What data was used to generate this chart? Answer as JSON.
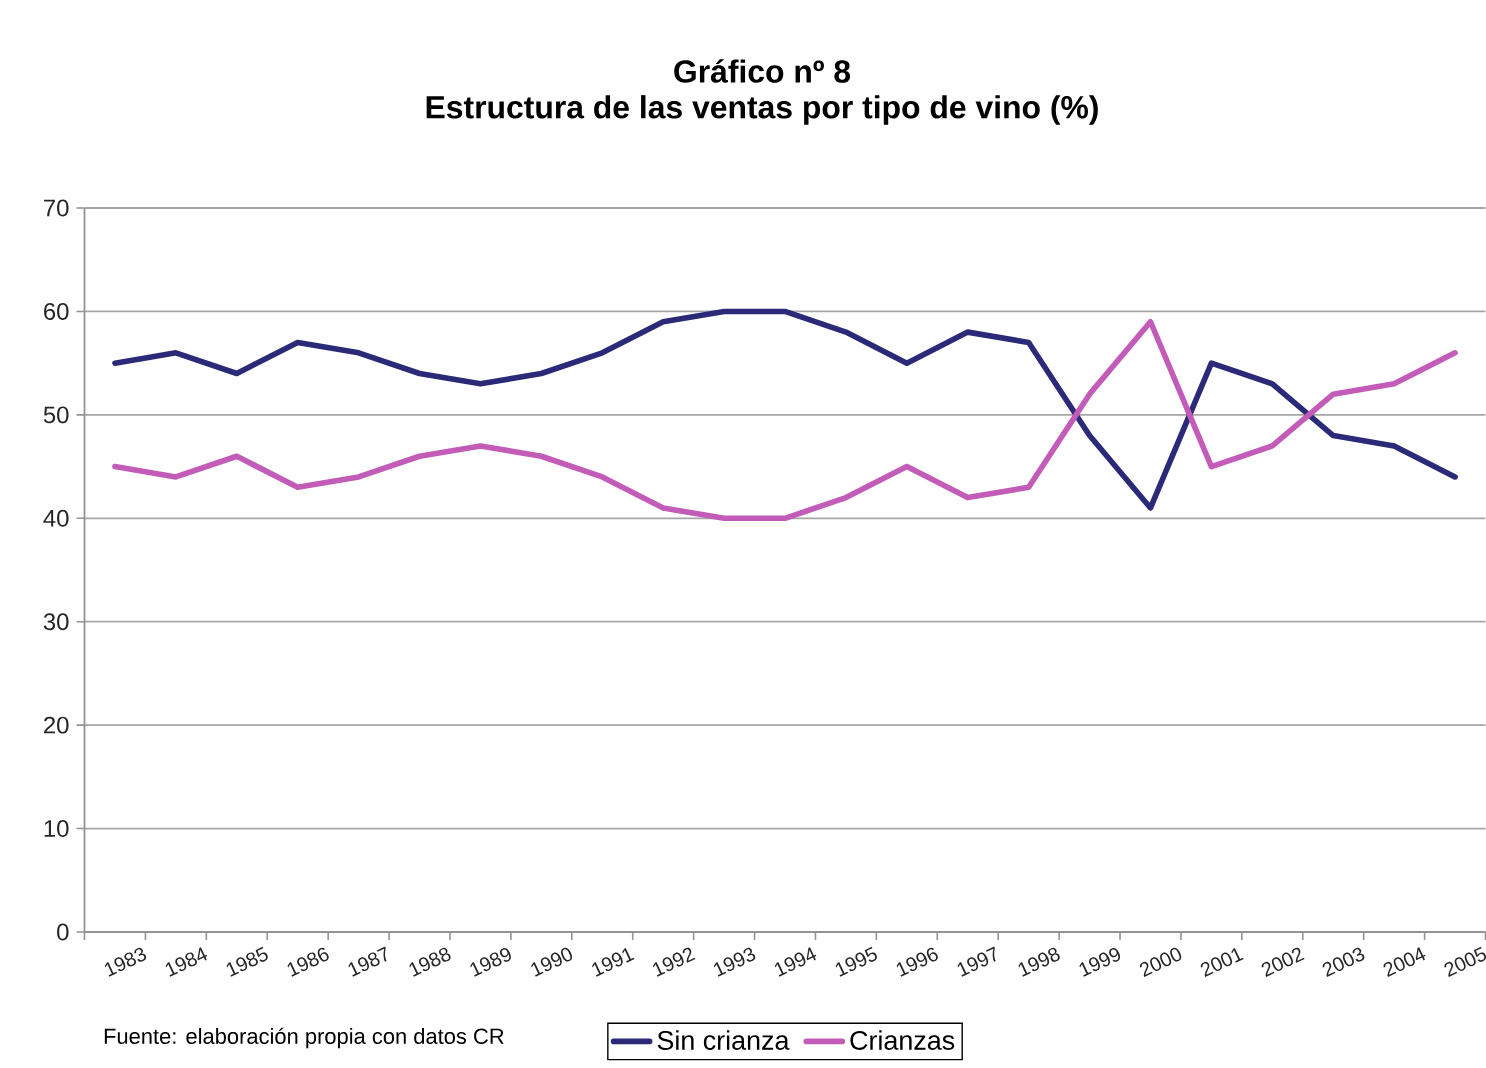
{
  "chart_data": {
    "type": "line",
    "title": "Gráfico nº 8",
    "subtitle": "Estructura de las ventas por tipo de vino (%)",
    "categories": [
      "1983",
      "1984",
      "1985",
      "1986",
      "1987",
      "1988",
      "1989",
      "1990",
      "1991",
      "1992",
      "1993",
      "1994",
      "1995",
      "1996",
      "1997",
      "1998",
      "1999",
      "2000",
      "2001",
      "2002",
      "2003",
      "2004",
      "2005"
    ],
    "series": [
      {
        "name": "Sin crianza",
        "color": "#2b2a78",
        "values": [
          55,
          56,
          54,
          57,
          56,
          54,
          53,
          54,
          56,
          59,
          60,
          60,
          58,
          55,
          58,
          57,
          48,
          41,
          55,
          53,
          48,
          47,
          44
        ]
      },
      {
        "name": "Crianzas",
        "color": "#c25cb8",
        "values": [
          45,
          44,
          46,
          43,
          44,
          46,
          47,
          46,
          44,
          41,
          40,
          40,
          42,
          45,
          42,
          43,
          52,
          59,
          45,
          47,
          52,
          53,
          56
        ]
      }
    ],
    "ylim": [
      0,
      70
    ],
    "yticks": [
      0,
      10,
      20,
      30,
      40,
      50,
      60,
      70
    ],
    "grid": "y",
    "legend": "bottom",
    "marker": "none",
    "line_style": "solid",
    "annotations": [
      "Fuente: elaboración propia con datos CR"
    ]
  }
}
